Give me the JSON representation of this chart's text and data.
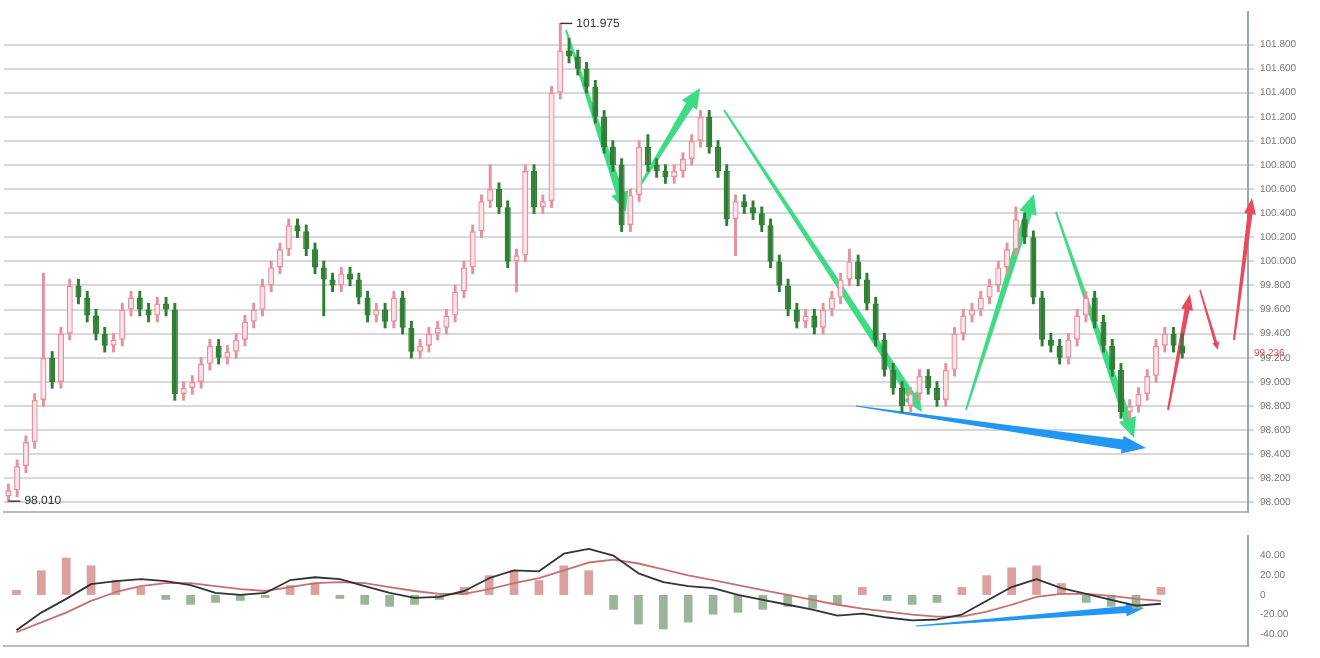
{
  "chart_data": [
    {
      "type": "candlestick",
      "categories": [
        null,
        null,
        null,
        null,
        null,
        null,
        null,
        null,
        null,
        null,
        null,
        null,
        null,
        null,
        null,
        null,
        null,
        null,
        null,
        null,
        null,
        null,
        null,
        null,
        null,
        null,
        null,
        null,
        null,
        null,
        null,
        null,
        null,
        null,
        null,
        null,
        null,
        null,
        null,
        null,
        null,
        null,
        null,
        null,
        null,
        null,
        null,
        null,
        null,
        null,
        null,
        null,
        null,
        null,
        null,
        null,
        null,
        null,
        null,
        null,
        null,
        null,
        null,
        null,
        null,
        null,
        null,
        null,
        null,
        null,
        null,
        null,
        null,
        null,
        null,
        null,
        null,
        null,
        null,
        null,
        null,
        null,
        null,
        null,
        null,
        null,
        null,
        null,
        null,
        null,
        null,
        null,
        null,
        null,
        null,
        null,
        null,
        null,
        null,
        null,
        null,
        null,
        null,
        null,
        null,
        null,
        null,
        null,
        null,
        null,
        null,
        null,
        null,
        null,
        null,
        null,
        null,
        null,
        null,
        null,
        null,
        null,
        null,
        null,
        null,
        null,
        null,
        null,
        null,
        null,
        null,
        null,
        null,
        null,
        null,
        null,
        null,
        null,
        null,
        null,
        null,
        null
      ],
      "ohlc": [
        [
          98.05,
          98.15,
          98.01,
          98.1
        ],
        [
          98.1,
          98.35,
          98.05,
          98.3
        ],
        [
          98.3,
          98.55,
          98.25,
          98.5
        ],
        [
          98.5,
          98.9,
          98.45,
          98.85
        ],
        [
          98.85,
          99.9,
          98.8,
          99.2
        ],
        [
          99.2,
          99.25,
          98.95,
          99.0
        ],
        [
          99.0,
          99.45,
          98.95,
          99.4
        ],
        [
          99.4,
          99.85,
          99.35,
          99.8
        ],
        [
          99.8,
          99.85,
          99.65,
          99.7
        ],
        [
          99.7,
          99.75,
          99.5,
          99.55
        ],
        [
          99.55,
          99.6,
          99.35,
          99.4
        ],
        [
          99.4,
          99.45,
          99.25,
          99.3
        ],
        [
          99.3,
          99.4,
          99.25,
          99.35
        ],
        [
          99.35,
          99.65,
          99.3,
          99.6
        ],
        [
          99.6,
          99.75,
          99.55,
          99.7
        ],
        [
          99.7,
          99.75,
          99.55,
          99.6
        ],
        [
          99.6,
          99.65,
          99.5,
          99.55
        ],
        [
          99.55,
          99.7,
          99.5,
          99.65
        ],
        [
          99.65,
          99.7,
          99.55,
          99.6
        ],
        [
          99.6,
          99.65,
          98.85,
          98.9
        ],
        [
          98.9,
          99.0,
          98.85,
          98.95
        ],
        [
          98.95,
          99.05,
          98.9,
          99.0
        ],
        [
          99.0,
          99.2,
          98.95,
          99.15
        ],
        [
          99.15,
          99.35,
          99.1,
          99.3
        ],
        [
          99.3,
          99.35,
          99.15,
          99.2
        ],
        [
          99.2,
          99.3,
          99.15,
          99.25
        ],
        [
          99.25,
          99.4,
          99.2,
          99.35
        ],
        [
          99.35,
          99.55,
          99.3,
          99.5
        ],
        [
          99.5,
          99.65,
          99.45,
          99.6
        ],
        [
          99.6,
          99.85,
          99.55,
          99.8
        ],
        [
          99.8,
          100.0,
          99.75,
          99.95
        ],
        [
          99.95,
          100.15,
          99.9,
          100.1
        ],
        [
          100.1,
          100.35,
          100.05,
          100.3
        ],
        [
          100.3,
          100.35,
          100.2,
          100.25
        ],
        [
          100.25,
          100.3,
          100.05,
          100.1
        ],
        [
          100.1,
          100.15,
          99.9,
          99.95
        ],
        [
          99.95,
          100.0,
          99.55,
          99.85
        ],
        [
          99.85,
          99.9,
          99.75,
          99.8
        ],
        [
          99.8,
          99.95,
          99.75,
          99.9
        ],
        [
          99.9,
          99.95,
          99.8,
          99.85
        ],
        [
          99.85,
          99.9,
          99.65,
          99.7
        ],
        [
          99.7,
          99.75,
          99.5,
          99.55
        ],
        [
          99.55,
          99.65,
          99.5,
          99.6
        ],
        [
          99.6,
          99.65,
          99.45,
          99.5
        ],
        [
          99.5,
          99.75,
          99.45,
          99.7
        ],
        [
          99.7,
          99.75,
          99.4,
          99.45
        ],
        [
          99.45,
          99.5,
          99.2,
          99.25
        ],
        [
          99.25,
          99.35,
          99.2,
          99.3
        ],
        [
          99.3,
          99.45,
          99.25,
          99.4
        ],
        [
          99.4,
          99.5,
          99.35,
          99.45
        ],
        [
          99.45,
          99.6,
          99.4,
          99.55
        ],
        [
          99.55,
          99.8,
          99.5,
          99.75
        ],
        [
          99.75,
          100.0,
          99.7,
          99.95
        ],
        [
          99.95,
          100.3,
          99.9,
          100.25
        ],
        [
          100.25,
          100.55,
          100.2,
          100.5
        ],
        [
          100.5,
          100.8,
          100.45,
          100.6
        ],
        [
          100.6,
          100.65,
          100.4,
          100.45
        ],
        [
          100.45,
          100.5,
          99.95,
          100.0
        ],
        [
          100.0,
          100.1,
          99.75,
          100.05
        ],
        [
          100.05,
          100.8,
          100.0,
          100.75
        ],
        [
          100.75,
          100.8,
          100.4,
          100.45
        ],
        [
          100.45,
          100.55,
          100.4,
          100.5
        ],
        [
          100.5,
          101.45,
          100.45,
          101.4
        ],
        [
          101.4,
          101.975,
          101.35,
          101.75
        ],
        [
          101.75,
          101.85,
          101.65,
          101.7
        ],
        [
          101.7,
          101.75,
          101.55,
          101.6
        ],
        [
          101.6,
          101.65,
          101.4,
          101.45
        ],
        [
          101.45,
          101.5,
          101.15,
          101.2
        ],
        [
          101.2,
          101.25,
          100.9,
          100.95
        ],
        [
          100.95,
          101.0,
          100.75,
          100.8
        ],
        [
          100.8,
          100.85,
          100.25,
          100.3
        ],
        [
          100.3,
          100.6,
          100.25,
          100.55
        ],
        [
          100.55,
          101.0,
          100.5,
          100.95
        ],
        [
          100.95,
          101.05,
          100.75,
          100.8
        ],
        [
          100.8,
          100.85,
          100.7,
          100.75
        ],
        [
          100.75,
          100.8,
          100.65,
          100.7
        ],
        [
          100.7,
          100.8,
          100.65,
          100.75
        ],
        [
          100.75,
          100.9,
          100.7,
          100.85
        ],
        [
          100.85,
          101.05,
          100.8,
          101.0
        ],
        [
          101.0,
          101.25,
          100.95,
          101.2
        ],
        [
          101.2,
          101.25,
          100.9,
          100.95
        ],
        [
          100.95,
          101.0,
          100.7,
          100.75
        ],
        [
          100.75,
          100.8,
          100.3,
          100.35
        ],
        [
          100.35,
          100.55,
          100.05,
          100.5
        ],
        [
          100.5,
          100.55,
          100.4,
          100.45
        ],
        [
          100.45,
          100.5,
          100.35,
          100.4
        ],
        [
          100.4,
          100.45,
          100.25,
          100.3
        ],
        [
          100.3,
          100.35,
          99.95,
          100.0
        ],
        [
          100.0,
          100.05,
          99.75,
          99.8
        ],
        [
          99.8,
          99.85,
          99.55,
          99.6
        ],
        [
          99.6,
          99.65,
          99.45,
          99.5
        ],
        [
          99.5,
          99.6,
          99.45,
          99.55
        ],
        [
          99.55,
          99.6,
          99.4,
          99.45
        ],
        [
          99.45,
          99.65,
          99.4,
          99.6
        ],
        [
          99.6,
          99.75,
          99.55,
          99.7
        ],
        [
          99.7,
          99.9,
          99.65,
          99.85
        ],
        [
          99.85,
          100.1,
          99.8,
          100.0
        ],
        [
          100.0,
          100.05,
          99.8,
          99.85
        ],
        [
          99.85,
          99.9,
          99.6,
          99.65
        ],
        [
          99.65,
          99.7,
          99.3,
          99.35
        ],
        [
          99.35,
          99.4,
          99.05,
          99.1
        ],
        [
          99.1,
          99.15,
          98.9,
          98.95
        ],
        [
          98.95,
          99.0,
          98.75,
          98.8
        ],
        [
          98.8,
          98.95,
          98.75,
          98.9
        ],
        [
          98.9,
          99.1,
          98.85,
          99.05
        ],
        [
          99.05,
          99.1,
          98.9,
          98.95
        ],
        [
          98.95,
          99.0,
          98.8,
          98.85
        ],
        [
          98.85,
          99.15,
          98.8,
          99.1
        ],
        [
          99.1,
          99.45,
          99.05,
          99.4
        ],
        [
          99.4,
          99.6,
          99.35,
          99.55
        ],
        [
          99.55,
          99.65,
          99.5,
          99.6
        ],
        [
          99.6,
          99.75,
          99.55,
          99.7
        ],
        [
          99.7,
          99.85,
          99.65,
          99.8
        ],
        [
          99.8,
          100.0,
          99.75,
          99.95
        ],
        [
          99.95,
          100.15,
          99.9,
          100.1
        ],
        [
          100.1,
          100.45,
          100.05,
          100.35
        ],
        [
          100.35,
          100.4,
          100.15,
          100.2
        ],
        [
          100.2,
          100.25,
          99.65,
          99.7
        ],
        [
          99.7,
          99.75,
          99.3,
          99.35
        ],
        [
          99.35,
          99.4,
          99.25,
          99.3
        ],
        [
          99.3,
          99.35,
          99.15,
          99.2
        ],
        [
          99.2,
          99.4,
          99.15,
          99.35
        ],
        [
          99.35,
          99.6,
          99.3,
          99.55
        ],
        [
          99.55,
          99.75,
          99.5,
          99.7
        ],
        [
          99.7,
          99.75,
          99.45,
          99.5
        ],
        [
          99.5,
          99.55,
          99.25,
          99.3
        ],
        [
          99.3,
          99.35,
          99.05,
          99.1
        ],
        [
          99.1,
          99.15,
          98.7,
          98.75
        ],
        [
          98.75,
          98.85,
          98.7,
          98.8
        ],
        [
          98.8,
          98.95,
          98.75,
          98.9
        ],
        [
          98.9,
          99.1,
          98.85,
          99.05
        ],
        [
          99.05,
          99.35,
          99.0,
          99.3
        ],
        [
          99.3,
          99.45,
          99.25,
          99.4
        ],
        [
          99.4,
          99.45,
          99.25,
          99.3
        ],
        [
          99.3,
          99.4,
          99.2,
          99.236
        ],
        null,
        null,
        null,
        null,
        null,
        null,
        null
      ],
      "ylim": [
        97.92,
        102.07
      ],
      "yticks": [
        {
          "value": 98.0,
          "label": "98.000"
        },
        {
          "value": 98.2,
          "label": "98.200"
        },
        {
          "value": 98.4,
          "label": "98.400"
        },
        {
          "value": 98.6,
          "label": "98.600"
        },
        {
          "value": 98.8,
          "label": "98.800"
        },
        {
          "value": 99.0,
          "label": "99.000"
        },
        {
          "value": 99.2,
          "label": "99.200"
        },
        {
          "value": 99.4,
          "label": "99.400"
        },
        {
          "value": 99.6,
          "label": "99.600"
        },
        {
          "value": 99.8,
          "label": "99.800"
        },
        {
          "value": 100.0,
          "label": "100.000"
        },
        {
          "value": 100.2,
          "label": "100.200"
        },
        {
          "value": 100.4,
          "label": "100.400"
        },
        {
          "value": 100.6,
          "label": "100.600"
        },
        {
          "value": 100.8,
          "label": "100.800"
        },
        {
          "value": 101.0,
          "label": "101.000"
        },
        {
          "value": 101.2,
          "label": "101.200"
        },
        {
          "value": 101.4,
          "label": "101.400"
        },
        {
          "value": 101.6,
          "label": "101.600"
        },
        {
          "value": 101.8,
          "label": "101.800"
        }
      ],
      "grid": "y",
      "tick_labels": "y",
      "annotations": [
        "101.975",
        "98.010",
        "99.236"
      ]
    },
    {
      "type": "bar",
      "categories": [
        null,
        null,
        null,
        null,
        null,
        null,
        null,
        null,
        null,
        null,
        null,
        null,
        null,
        null,
        null,
        null,
        null,
        null,
        null,
        null,
        null,
        null,
        null,
        null,
        null,
        null,
        null,
        null,
        null,
        null,
        null,
        null,
        null,
        null,
        null,
        null,
        null,
        null,
        null,
        null,
        null,
        null,
        null,
        null,
        null,
        null,
        null,
        null,
        null,
        null
      ],
      "series": [
        {
          "type": "bar",
          "values": [
            5,
            25,
            38,
            30,
            15,
            8,
            -5,
            -10,
            -8,
            -6,
            -3,
            10,
            12,
            -4,
            -10,
            -12,
            -10,
            -5,
            8,
            20,
            25,
            15,
            30,
            25,
            -15,
            -30,
            -35,
            -28,
            -20,
            -18,
            -15,
            -12,
            -14,
            -10,
            8,
            -6,
            -10,
            -8,
            8,
            20,
            28,
            30,
            12,
            -8,
            -12,
            -14,
            8,
            null,
            null,
            null
          ],
          "colors": [
            "#dca0a0",
            "#dca0a0",
            "#dca0a0",
            "#dca0a0",
            "#dca0a0",
            "#dca0a0",
            "#9bb59b",
            "#9bb59b",
            "#9bb59b",
            "#9bb59b",
            "#9bb59b",
            "#dca0a0",
            "#dca0a0",
            "#9bb59b",
            "#9bb59b",
            "#9bb59b",
            "#9bb59b",
            "#9bb59b",
            "#dca0a0",
            "#dca0a0",
            "#dca0a0",
            "#dca0a0",
            "#dca0a0",
            "#dca0a0",
            "#9bb59b",
            "#9bb59b",
            "#9bb59b",
            "#9bb59b",
            "#9bb59b",
            "#9bb59b",
            "#9bb59b",
            "#9bb59b",
            "#9bb59b",
            "#9bb59b",
            "#dca0a0",
            "#9bb59b",
            "#9bb59b",
            "#9bb59b",
            "#dca0a0",
            "#dca0a0",
            "#dca0a0",
            "#dca0a0",
            "#dca0a0",
            "#9bb59b",
            "#9bb59b",
            "#9bb59b",
            "#dca0a0",
            "#dca0a0",
            "#dca0a0",
            "#dca0a0"
          ]
        },
        {
          "type": "line",
          "color": "#333333",
          "values": [
            -36,
            -18,
            -4,
            11,
            14,
            16,
            14,
            10,
            2,
            0,
            2,
            15,
            18,
            16,
            9,
            2,
            -3,
            -2,
            4,
            17,
            25,
            24,
            42,
            47,
            40,
            22,
            13,
            9,
            7,
            0,
            -5,
            -10,
            -15,
            -21,
            -19,
            -23,
            -26,
            -25,
            -20,
            -6,
            8,
            16,
            7,
            1,
            -5,
            -11,
            -9,
            null,
            null,
            null
          ]
        },
        {
          "type": "line",
          "color": "#c87070",
          "values": [
            -38,
            -28,
            -18,
            -6,
            3,
            9,
            12,
            12,
            9,
            6,
            4,
            8,
            12,
            13,
            12,
            8,
            4,
            1,
            1,
            6,
            12,
            17,
            25,
            33,
            36,
            32,
            26,
            20,
            15,
            10,
            5,
            0,
            -5,
            -10,
            -14,
            -17,
            -20,
            -22,
            -22,
            -17,
            -10,
            -2,
            1,
            1,
            -1,
            -4,
            -6,
            null,
            null,
            null
          ]
        }
      ],
      "ylim": [
        -52,
        60
      ],
      "yticks": [
        {
          "value": -40,
          "label": "-40.00"
        },
        {
          "value": -20,
          "label": "-20.00"
        },
        0,
        {
          "value": 20,
          "label": "20.00"
        },
        {
          "value": 40,
          "label": "40.00"
        }
      ],
      "tick_labels": "y"
    }
  ]
}
